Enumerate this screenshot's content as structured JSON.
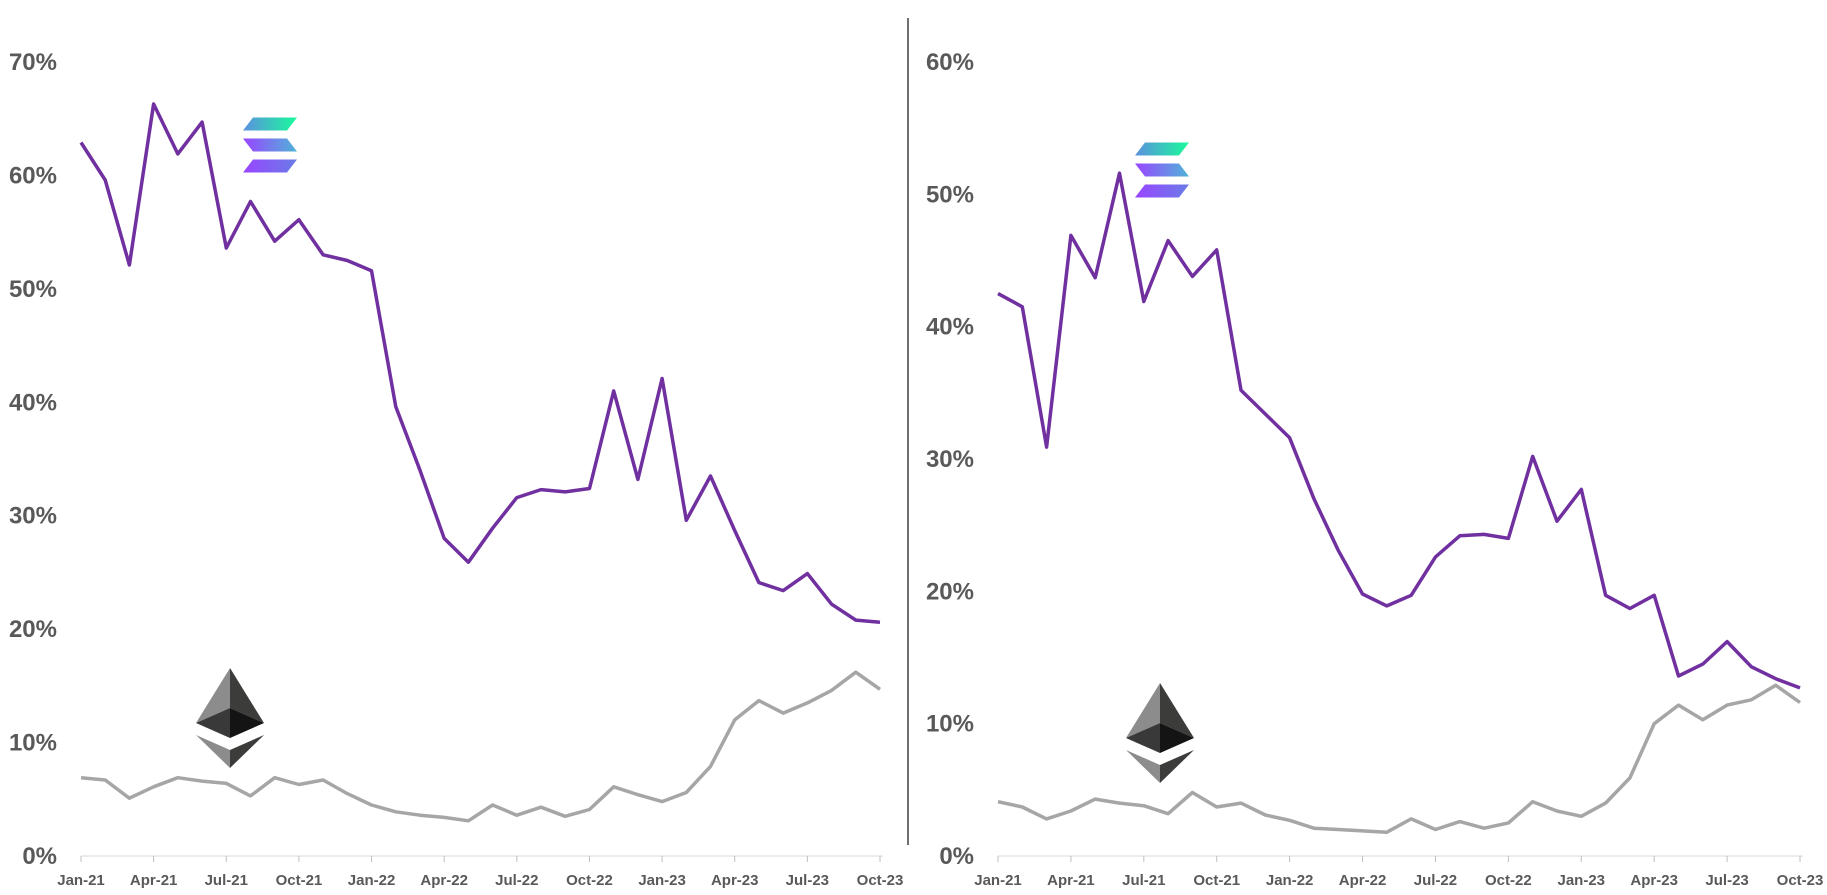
{
  "colors": {
    "solana": "#7030A0",
    "ethereum": "#A6A6A6",
    "axis_text": "#595959",
    "divider": "#404040",
    "sol_logo_top": "#19FB9B",
    "sol_logo_mid": "#8F5CE8",
    "sol_logo_bottom": "#9945FF"
  },
  "icons": {
    "solana": "solana-logo-icon",
    "ethereum": "ethereum-logo-icon"
  },
  "chart_data": [
    {
      "type": "line",
      "title": "",
      "xlabel": "",
      "ylabel": "",
      "ylim": [
        0,
        70
      ],
      "yticks": [
        "0%",
        "10%",
        "20%",
        "30%",
        "40%",
        "50%",
        "60%",
        "70%"
      ],
      "x_tick_labels": [
        "Jan-21",
        "Apr-21",
        "Jul-21",
        "Oct-21",
        "Jan-22",
        "Apr-22",
        "Jul-22",
        "Oct-22",
        "Jan-23",
        "Apr-23",
        "Jul-23",
        "Oct-23"
      ],
      "grid": false,
      "legend": "none",
      "series": [
        {
          "key": "solana",
          "values": [
            62.9,
            59.6,
            52.1,
            66.3,
            61.9,
            64.7,
            53.6,
            57.7,
            54.2,
            56.1,
            53.0,
            52.5,
            51.6,
            39.6,
            34.0,
            28.0,
            25.9,
            28.9,
            31.6,
            32.3,
            32.1,
            32.4,
            41.0,
            33.2,
            42.1,
            29.6,
            33.5,
            28.7,
            24.1,
            23.4,
            24.9,
            22.2,
            20.8,
            20.6
          ]
        },
        {
          "key": "ethereum",
          "values": [
            6.9,
            6.7,
            5.1,
            6.1,
            6.9,
            6.6,
            6.4,
            5.3,
            6.9,
            6.3,
            6.7,
            5.5,
            4.5,
            3.9,
            3.6,
            3.4,
            3.1,
            4.5,
            3.6,
            4.3,
            3.5,
            4.1,
            6.1,
            5.4,
            4.8,
            5.6,
            7.9,
            12.0,
            13.7,
            12.6,
            13.5,
            14.6,
            16.2,
            14.7
          ]
        }
      ]
    },
    {
      "type": "line",
      "title": "",
      "xlabel": "",
      "ylabel": "",
      "ylim": [
        0,
        60
      ],
      "yticks": [
        "0%",
        "10%",
        "20%",
        "30%",
        "40%",
        "50%",
        "60%"
      ],
      "x_tick_labels": [
        "Jan-21",
        "Apr-21",
        "Jul-21",
        "Oct-21",
        "Jan-22",
        "Apr-22",
        "Jul-22",
        "Oct-22",
        "Jan-23",
        "Apr-23",
        "Jul-23",
        "Oct-23"
      ],
      "grid": false,
      "legend": "none",
      "series": [
        {
          "key": "solana",
          "values": [
            42.5,
            41.5,
            30.9,
            46.9,
            43.7,
            51.6,
            41.9,
            46.5,
            43.8,
            45.8,
            35.2,
            33.4,
            31.6,
            27.0,
            23.1,
            19.8,
            18.9,
            19.7,
            22.6,
            24.2,
            24.3,
            24.0,
            30.2,
            25.3,
            27.7,
            19.7,
            18.7,
            19.7,
            13.6,
            14.5,
            16.2,
            14.3,
            13.4,
            12.7
          ]
        },
        {
          "key": "ethereum",
          "values": [
            4.1,
            3.7,
            2.8,
            3.4,
            4.3,
            4.0,
            3.8,
            3.2,
            4.8,
            3.7,
            4.0,
            3.1,
            2.7,
            2.1,
            2.0,
            1.9,
            1.8,
            2.8,
            2.0,
            2.6,
            2.1,
            2.5,
            4.1,
            3.4,
            3.0,
            4.0,
            5.9,
            10.0,
            11.4,
            10.3,
            11.4,
            11.8,
            12.9,
            11.6
          ]
        }
      ]
    }
  ]
}
